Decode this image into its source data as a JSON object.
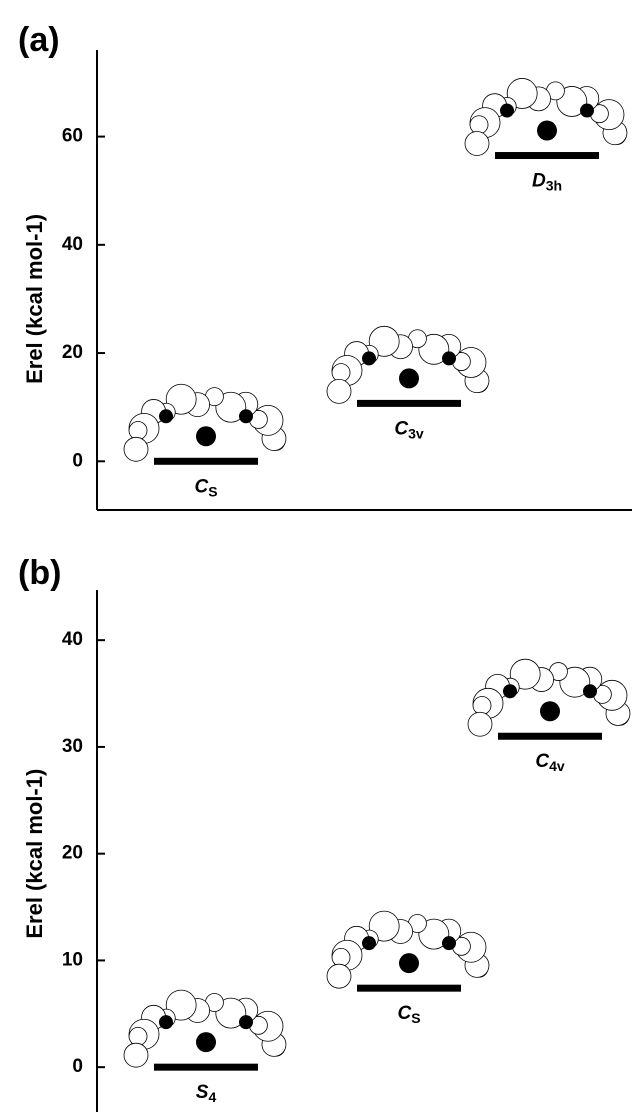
{
  "chart_data": [
    {
      "type": "level",
      "title": "(a)",
      "y_label": "Erel (kcal mol-1)",
      "categories": [
        "CS",
        "C3v",
        "D3h"
      ],
      "values": [
        0,
        10.7,
        56.5
      ],
      "color": "#000000",
      "ylim": [
        -9,
        76
      ],
      "yticks": [
        0,
        20,
        40,
        60
      ]
    },
    {
      "type": "level",
      "title": "(b)",
      "y_label": "Erel (kcal mol-1)",
      "categories": [
        "S4",
        "CS",
        "C4v"
      ],
      "values": [
        0,
        7.4,
        31.0
      ],
      "color": "#000000",
      "ylim": [
        -4.2,
        44.7
      ],
      "yticks": [
        0,
        10,
        20,
        30,
        40
      ]
    }
  ]
}
